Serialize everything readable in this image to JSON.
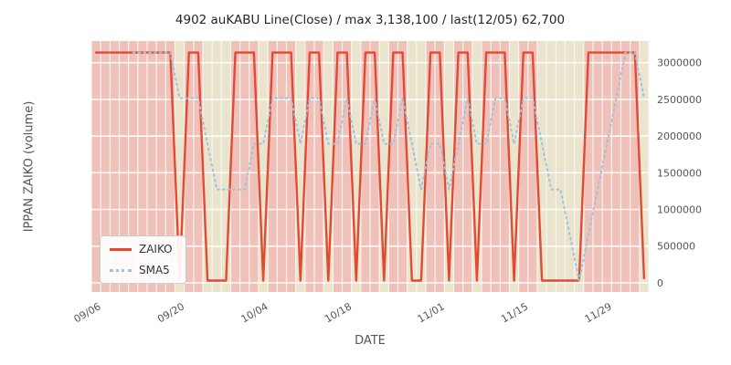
{
  "chart_data": {
    "type": "line",
    "title": "4902 auKABU Line(Close) / max 3,138,100 / last(12/05) 62,700",
    "xlabel": "DATE",
    "ylabel": "IPPAN ZAIKO (volume)",
    "max_value": 3138100,
    "last": {
      "date": "12/05",
      "value": 62700
    },
    "ylim": [
      -125000,
      3295000
    ],
    "grid": "horizontal white gridlines",
    "legend_position": "lower left",
    "x": [
      "09/06",
      "09/07",
      "09/08",
      "09/09",
      "09/12",
      "09/13",
      "09/14",
      "09/15",
      "09/16",
      "09/20",
      "09/21",
      "09/22",
      "09/26",
      "09/27",
      "09/28",
      "09/29",
      "09/30",
      "10/03",
      "10/04",
      "10/05",
      "10/06",
      "10/07",
      "10/11",
      "10/12",
      "10/13",
      "10/14",
      "10/17",
      "10/18",
      "10/19",
      "10/20",
      "10/21",
      "10/24",
      "10/25",
      "10/26",
      "10/27",
      "10/28",
      "10/31",
      "11/01",
      "11/02",
      "11/04",
      "11/07",
      "11/08",
      "11/09",
      "11/10",
      "11/11",
      "11/14",
      "11/15",
      "11/16",
      "11/17",
      "11/18",
      "11/21",
      "11/22",
      "11/24",
      "11/25",
      "11/28",
      "11/29",
      "11/30",
      "12/01",
      "12/02",
      "12/05"
    ],
    "series": [
      {
        "name": "ZAIKO",
        "color": "#e24a33",
        "style": "solid",
        "values": [
          3138100,
          3138100,
          3138100,
          3138100,
          3138100,
          3138100,
          3138100,
          3138100,
          3138100,
          30000,
          3138100,
          3138100,
          30000,
          30000,
          30000,
          3138100,
          3138100,
          3138100,
          30000,
          3138100,
          3138100,
          3138100,
          30000,
          3138100,
          3138100,
          30000,
          3138100,
          3138100,
          30000,
          3138100,
          3138100,
          30000,
          3138100,
          3138100,
          30000,
          30000,
          3138100,
          3138100,
          30000,
          3138100,
          3138100,
          30000,
          3138100,
          3138100,
          3138100,
          30000,
          3138100,
          3138100,
          30000,
          30000,
          30000,
          30000,
          30000,
          3138100,
          3138100,
          3138100,
          3138100,
          3138100,
          3138100,
          62700
        ]
      },
      {
        "name": "SMA5",
        "color": "#9fc2dd",
        "style": "dotted",
        "values": [
          null,
          null,
          null,
          null,
          3138100,
          3138100,
          3138100,
          3138100,
          3138100,
          2516480,
          2516480,
          2516480,
          1894860,
          1273240,
          1273240,
          1273240,
          1273240,
          1894860,
          1894860,
          2516480,
          2516480,
          2516480,
          1894860,
          2516480,
          2516480,
          1894860,
          1894860,
          2516480,
          1894860,
          1894860,
          2516480,
          1894860,
          1894860,
          2516480,
          1894860,
          1273240,
          1894860,
          1894860,
          1273240,
          1894860,
          2516480,
          1894860,
          1894860,
          2516480,
          2516480,
          1894860,
          2516480,
          2516480,
          1894860,
          1273240,
          1273240,
          651620,
          30000,
          651620,
          1273240,
          1894860,
          2516480,
          3138100,
          3138100,
          2523020
        ]
      }
    ],
    "y_ticks": [
      0,
      500000,
      1000000,
      1500000,
      2000000,
      2500000,
      3000000
    ],
    "x_ticks": [
      "09/06",
      "09/20",
      "10/04",
      "10/18",
      "11/01",
      "11/15",
      "11/29"
    ],
    "background_bands": {
      "high_color": "rgba(226,74,51,0.30)",
      "low_color": "rgba(210,190,120,0.30)",
      "threshold": 1000000
    },
    "colors": {
      "plot_bg": "#f7f5f2",
      "grid": "#ffffff",
      "tick_label": "#555555"
    }
  },
  "legend": {
    "zaiko_label": "ZAIKO",
    "sma5_label": "SMA5"
  }
}
